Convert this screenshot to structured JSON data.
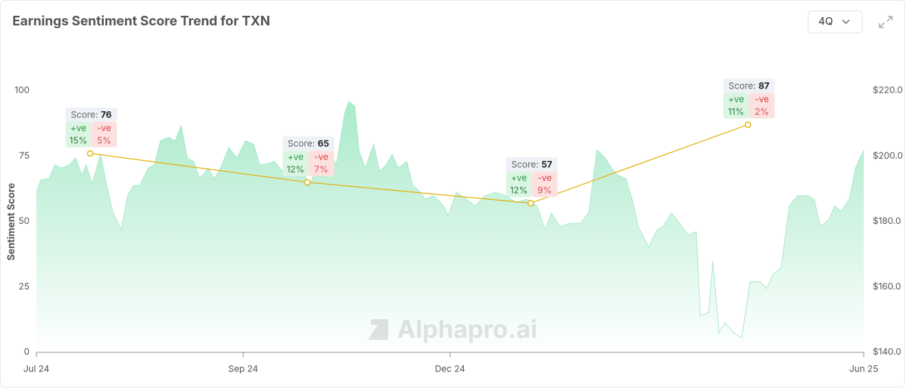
{
  "chart_data": {
    "type": "line",
    "title": "Earnings Sentiment Score Trend for TXN",
    "period": "4Q",
    "watermark": "Alphapro.ai",
    "ylabel": "Sentiment Score",
    "xlim": [
      0,
      4
    ],
    "xticks": [
      {
        "value": 0,
        "label": "Jul 24"
      },
      {
        "value": 1,
        "label": "Sep 24"
      },
      {
        "value": 2,
        "label": "Dec 24"
      },
      {
        "value": 4,
        "label": "Jun 25"
      }
    ],
    "ylim": [
      0,
      100
    ],
    "yticks": [
      0,
      25,
      50,
      75,
      100
    ],
    "y2lim": [
      140,
      220
    ],
    "y2ticks": [
      {
        "value": 140,
        "label": "$140.0"
      },
      {
        "value": 160,
        "label": "$160.0"
      },
      {
        "value": 180,
        "label": "$180.0"
      },
      {
        "value": 200,
        "label": "$200.0"
      },
      {
        "value": 220,
        "label": "$220.0"
      }
    ],
    "tooltip_labels": {
      "score": "Score:",
      "positive": "+ve",
      "negative": "-ve"
    },
    "series": [
      {
        "type": "area",
        "axis": "y2",
        "color": "#a6e9c8",
        "x": [
          0,
          0.02,
          0.06,
          0.09,
          0.12,
          0.16,
          0.19,
          0.22,
          0.24,
          0.27,
          0.31,
          0.34,
          0.37,
          0.41,
          0.44,
          0.47,
          0.5,
          0.54,
          0.57,
          0.6,
          0.64,
          0.67,
          0.7,
          0.73,
          0.76,
          0.79,
          0.83,
          0.86,
          0.89,
          0.93,
          0.97,
          1.01,
          1.05,
          1.08,
          1.12,
          1.15,
          1.19,
          1.24,
          1.29,
          1.32,
          1.35,
          1.39,
          1.42,
          1.45,
          1.49,
          1.51,
          1.54,
          1.56,
          1.59,
          1.63,
          1.66,
          1.69,
          1.72,
          1.75,
          1.79,
          1.82,
          1.85,
          1.88,
          1.92,
          1.97,
          1.99,
          2.03,
          2.08,
          2.12,
          2.17,
          2.22,
          2.27,
          2.32,
          2.37,
          2.42,
          2.46,
          2.49,
          2.53,
          2.58,
          2.63,
          2.67,
          2.71,
          2.75,
          2.78,
          2.81,
          2.85,
          2.88,
          2.91,
          2.96,
          3.0,
          3.03,
          3.07,
          3.11,
          3.15,
          3.19,
          3.21,
          3.25,
          3.27,
          3.3,
          3.33,
          3.37,
          3.41,
          3.45,
          3.5,
          3.53,
          3.56,
          3.6,
          3.64,
          3.68,
          3.73,
          3.76,
          3.79,
          3.83,
          3.86,
          3.89,
          3.93,
          3.96,
          4
        ],
        "values": [
          188.9,
          192.7,
          193.1,
          197.3,
          196.3,
          197.3,
          199.4,
          194.2,
          197.3,
          191.5,
          200.5,
          191.0,
          182.6,
          177.4,
          187.9,
          191.0,
          191.0,
          196.3,
          197.3,
          204.7,
          205.7,
          204.7,
          209.3,
          199.4,
          198.4,
          193.1,
          196.3,
          193.1,
          196.3,
          202.6,
          199.4,
          204.7,
          203.6,
          197.3,
          197.7,
          198.4,
          195.3,
          198.4,
          195.3,
          190.6,
          196.3,
          197.7,
          201.1,
          197.3,
          213.1,
          216.7,
          215.2,
          201.5,
          196.3,
          203.6,
          195.3,
          197.3,
          200.5,
          196.3,
          198.4,
          191.0,
          189.4,
          186.8,
          187.9,
          184.7,
          181.6,
          188.9,
          186.8,
          184.7,
          187.9,
          188.9,
          187.9,
          185.8,
          186.8,
          184.7,
          177.4,
          182.6,
          178.4,
          179.4,
          179.4,
          182.6,
          201.9,
          199.4,
          196.3,
          194.2,
          193.1,
          186.8,
          178.4,
          172.1,
          177.4,
          178.4,
          182.6,
          179.4,
          175.8,
          176.9,
          151.1,
          152.2,
          167.9,
          145.9,
          149.0,
          145.9,
          144.4,
          161.6,
          161.6,
          159.5,
          163.7,
          165.8,
          184.7,
          187.9,
          187.9,
          186.8,
          178.4,
          180.5,
          184.7,
          183.0,
          186.8,
          196.3,
          201.9
        ]
      },
      {
        "type": "line",
        "color": "#e2b20c",
        "x": [
          0.26,
          1.31,
          2.39,
          3.44
        ],
        "values": [
          76,
          65,
          57,
          87
        ],
        "positive": {
          "values": [
            15,
            12,
            12,
            11
          ],
          "value_labels": [
            "15%",
            "12%",
            "12%",
            "11%"
          ]
        },
        "negative": {
          "values": [
            5,
            7,
            9,
            2
          ],
          "value_labels": [
            "5%",
            "7%",
            "9%",
            "2%"
          ]
        }
      }
    ]
  }
}
